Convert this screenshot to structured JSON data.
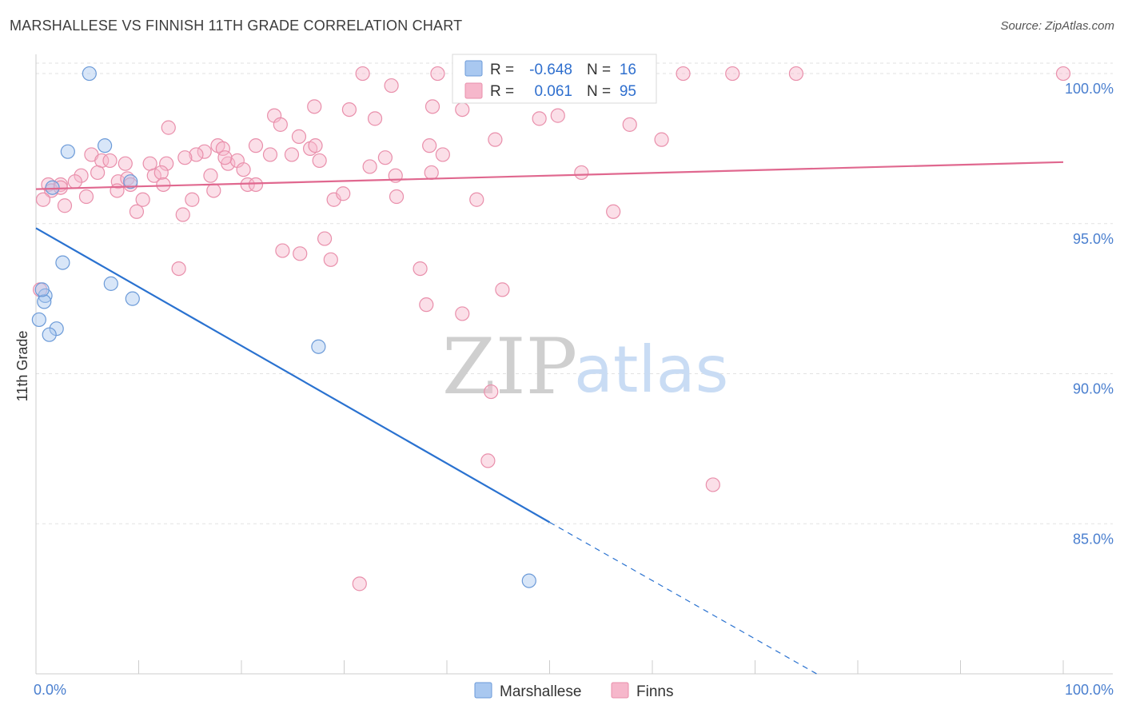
{
  "header": {
    "title": "MARSHALLESE VS FINNISH 11TH GRADE CORRELATION CHART",
    "source": "Source: ZipAtlas.com"
  },
  "watermark": {
    "zip": "ZIP",
    "atlas": "atlas"
  },
  "legend": {
    "r_label": "R =",
    "n_label": "N =",
    "rows": [
      {
        "name": "Marshallese",
        "r": "-0.648",
        "n": "16",
        "color": "#a9c8f0"
      },
      {
        "name": "Finns",
        "r": "0.061",
        "n": "95",
        "color": "#f6b7cb"
      }
    ]
  },
  "chart_data": {
    "type": "scatter",
    "ylabel": "11th Grade",
    "xlabel": "",
    "xlim": [
      0,
      100
    ],
    "ylim": [
      80.0,
      100.8
    ],
    "x_tick_labels": [
      "0.0%",
      "100.0%"
    ],
    "y_ticks": [
      {
        "value": 100,
        "label": "100.0%"
      },
      {
        "value": 95,
        "label": "95.0%"
      },
      {
        "value": 90,
        "label": "90.0%"
      },
      {
        "value": 85,
        "label": "85.0%"
      }
    ],
    "grid": true,
    "series": [
      {
        "name": "Marshallese",
        "color": "#a9c8f0",
        "stroke": "#6b9ad8",
        "trend_color": "#2a72d0",
        "trend": {
          "x0": 0,
          "y0": 94.85,
          "x1": 50,
          "y1": 85.05,
          "dash_to_x": 76,
          "dash_to_y": 80.0
        },
        "points": [
          [
            5.2,
            100.0
          ],
          [
            3.1,
            97.4
          ],
          [
            6.7,
            97.6
          ],
          [
            9.2,
            96.4
          ],
          [
            1.6,
            96.2
          ],
          [
            2.6,
            93.7
          ],
          [
            7.3,
            93.0
          ],
          [
            9.4,
            92.5
          ],
          [
            0.9,
            92.6
          ],
          [
            0.8,
            92.4
          ],
          [
            0.6,
            92.8
          ],
          [
            0.3,
            91.8
          ],
          [
            2.0,
            91.5
          ],
          [
            1.3,
            91.3
          ],
          [
            27.5,
            90.9
          ],
          [
            48.0,
            83.1
          ]
        ]
      },
      {
        "name": "Finns",
        "color": "#f6b7cb",
        "stroke": "#e98fab",
        "trend_color": "#e0688f",
        "trend": {
          "x0": 0,
          "y0": 96.15,
          "x1": 100,
          "y1": 97.05
        },
        "points": [
          [
            31.8,
            100.0
          ],
          [
            39.1,
            100.0
          ],
          [
            56.2,
            100.0
          ],
          [
            58.7,
            100.0
          ],
          [
            63.0,
            100.0
          ],
          [
            67.8,
            100.0
          ],
          [
            74.0,
            100.0
          ],
          [
            100.0,
            100.0
          ],
          [
            34.6,
            99.6
          ],
          [
            27.1,
            98.9
          ],
          [
            30.5,
            98.8
          ],
          [
            38.6,
            98.9
          ],
          [
            41.5,
            98.8
          ],
          [
            33.0,
            98.5
          ],
          [
            23.2,
            98.6
          ],
          [
            23.8,
            98.3
          ],
          [
            49.0,
            98.5
          ],
          [
            50.8,
            98.6
          ],
          [
            12.9,
            98.2
          ],
          [
            57.8,
            98.3
          ],
          [
            25.6,
            97.9
          ],
          [
            26.7,
            97.5
          ],
          [
            27.2,
            97.6
          ],
          [
            21.4,
            97.6
          ],
          [
            17.7,
            97.6
          ],
          [
            18.2,
            97.5
          ],
          [
            16.4,
            97.4
          ],
          [
            15.6,
            97.3
          ],
          [
            14.5,
            97.2
          ],
          [
            24.9,
            97.3
          ],
          [
            22.8,
            97.3
          ],
          [
            27.6,
            97.1
          ],
          [
            34.0,
            97.2
          ],
          [
            32.5,
            96.9
          ],
          [
            38.3,
            97.6
          ],
          [
            39.6,
            97.3
          ],
          [
            44.7,
            97.8
          ],
          [
            60.9,
            97.8
          ],
          [
            5.4,
            97.3
          ],
          [
            6.4,
            97.1
          ],
          [
            7.2,
            97.1
          ],
          [
            8.7,
            97.0
          ],
          [
            11.1,
            97.0
          ],
          [
            12.7,
            97.0
          ],
          [
            18.7,
            97.0
          ],
          [
            19.6,
            97.1
          ],
          [
            20.2,
            96.8
          ],
          [
            11.5,
            96.6
          ],
          [
            12.2,
            96.7
          ],
          [
            6.0,
            96.7
          ],
          [
            4.4,
            96.6
          ],
          [
            3.8,
            96.4
          ],
          [
            1.2,
            96.3
          ],
          [
            2.4,
            96.3
          ],
          [
            1.5,
            96.1
          ],
          [
            2.4,
            96.2
          ],
          [
            8.0,
            96.4
          ],
          [
            8.9,
            96.5
          ],
          [
            9.2,
            96.3
          ],
          [
            12.4,
            96.3
          ],
          [
            17.0,
            96.6
          ],
          [
            17.3,
            96.1
          ],
          [
            20.6,
            96.3
          ],
          [
            21.4,
            96.3
          ],
          [
            35.0,
            96.6
          ],
          [
            38.5,
            96.7
          ],
          [
            53.1,
            96.7
          ],
          [
            7.9,
            96.1
          ],
          [
            0.7,
            95.8
          ],
          [
            2.8,
            95.6
          ],
          [
            4.9,
            95.9
          ],
          [
            10.4,
            95.8
          ],
          [
            15.2,
            95.8
          ],
          [
            29.0,
            95.8
          ],
          [
            35.1,
            95.9
          ],
          [
            29.9,
            96.0
          ],
          [
            42.9,
            95.8
          ],
          [
            9.8,
            95.4
          ],
          [
            14.3,
            95.3
          ],
          [
            56.2,
            95.4
          ],
          [
            24.0,
            94.1
          ],
          [
            25.7,
            94.0
          ],
          [
            28.1,
            94.5
          ],
          [
            28.7,
            93.8
          ],
          [
            13.9,
            93.5
          ],
          [
            37.4,
            93.5
          ],
          [
            45.4,
            92.8
          ],
          [
            38.0,
            92.3
          ],
          [
            41.5,
            92.0
          ],
          [
            44.3,
            89.4
          ],
          [
            44.0,
            87.1
          ],
          [
            65.9,
            86.3
          ],
          [
            31.5,
            83.0
          ],
          [
            0.4,
            92.8
          ],
          [
            18.4,
            97.2
          ]
        ]
      }
    ]
  }
}
